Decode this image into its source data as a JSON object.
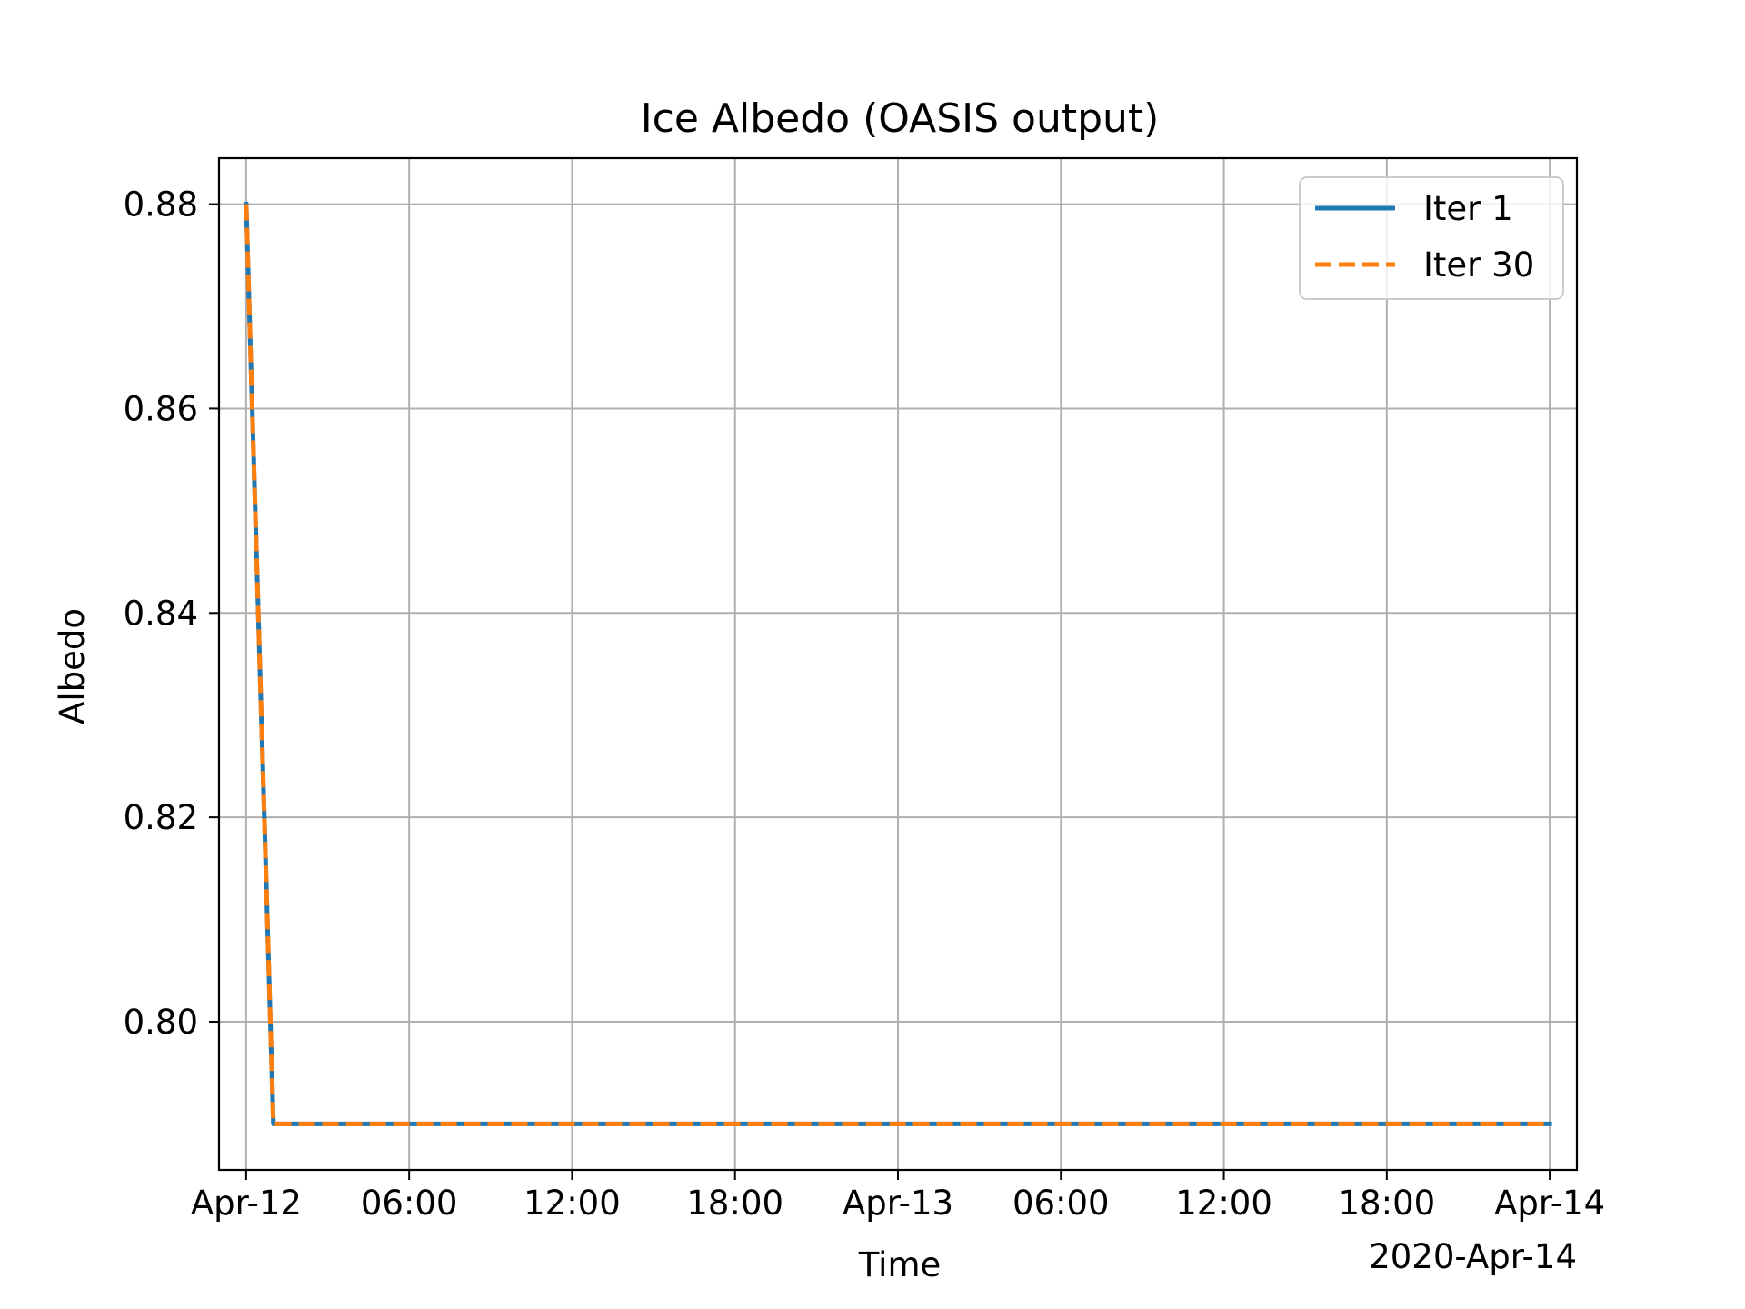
{
  "chart_data": {
    "type": "line",
    "title": "Ice Albedo (OASIS output)",
    "xlabel": "Time",
    "ylabel": "Albedo",
    "x_offset_label": "2020-Apr-14",
    "xlim": [
      "2020-04-11T23:00",
      "2020-04-14T01:00"
    ],
    "ylim": [
      0.7855,
      0.8845
    ],
    "x_ticks": [
      {
        "value": "2020-04-12T00:00",
        "label": "Apr-12"
      },
      {
        "value": "2020-04-12T06:00",
        "label": "06:00"
      },
      {
        "value": "2020-04-12T12:00",
        "label": "12:00"
      },
      {
        "value": "2020-04-12T18:00",
        "label": "18:00"
      },
      {
        "value": "2020-04-13T00:00",
        "label": "Apr-13"
      },
      {
        "value": "2020-04-13T06:00",
        "label": "06:00"
      },
      {
        "value": "2020-04-13T12:00",
        "label": "12:00"
      },
      {
        "value": "2020-04-13T18:00",
        "label": "18:00"
      },
      {
        "value": "2020-04-14T00:00",
        "label": "Apr-14"
      }
    ],
    "y_ticks": [
      {
        "value": 0.8,
        "label": "0.80"
      },
      {
        "value": 0.82,
        "label": "0.82"
      },
      {
        "value": 0.84,
        "label": "0.84"
      },
      {
        "value": 0.86,
        "label": "0.86"
      },
      {
        "value": 0.88,
        "label": "0.88"
      }
    ],
    "grid": true,
    "legend_position": "top-right",
    "series": [
      {
        "name": "Iter 1",
        "color": "#1f77b4",
        "line_style": "solid",
        "x": [
          "2020-04-12T00:00",
          "2020-04-12T01:00",
          "2020-04-14T00:00"
        ],
        "y": [
          0.88,
          0.79,
          0.79
        ]
      },
      {
        "name": "Iter 30",
        "color": "#ff7f0e",
        "line_style": "dashed",
        "x": [
          "2020-04-12T00:00",
          "2020-04-12T01:00",
          "2020-04-14T00:00"
        ],
        "y": [
          0.88,
          0.79,
          0.79
        ]
      }
    ]
  }
}
